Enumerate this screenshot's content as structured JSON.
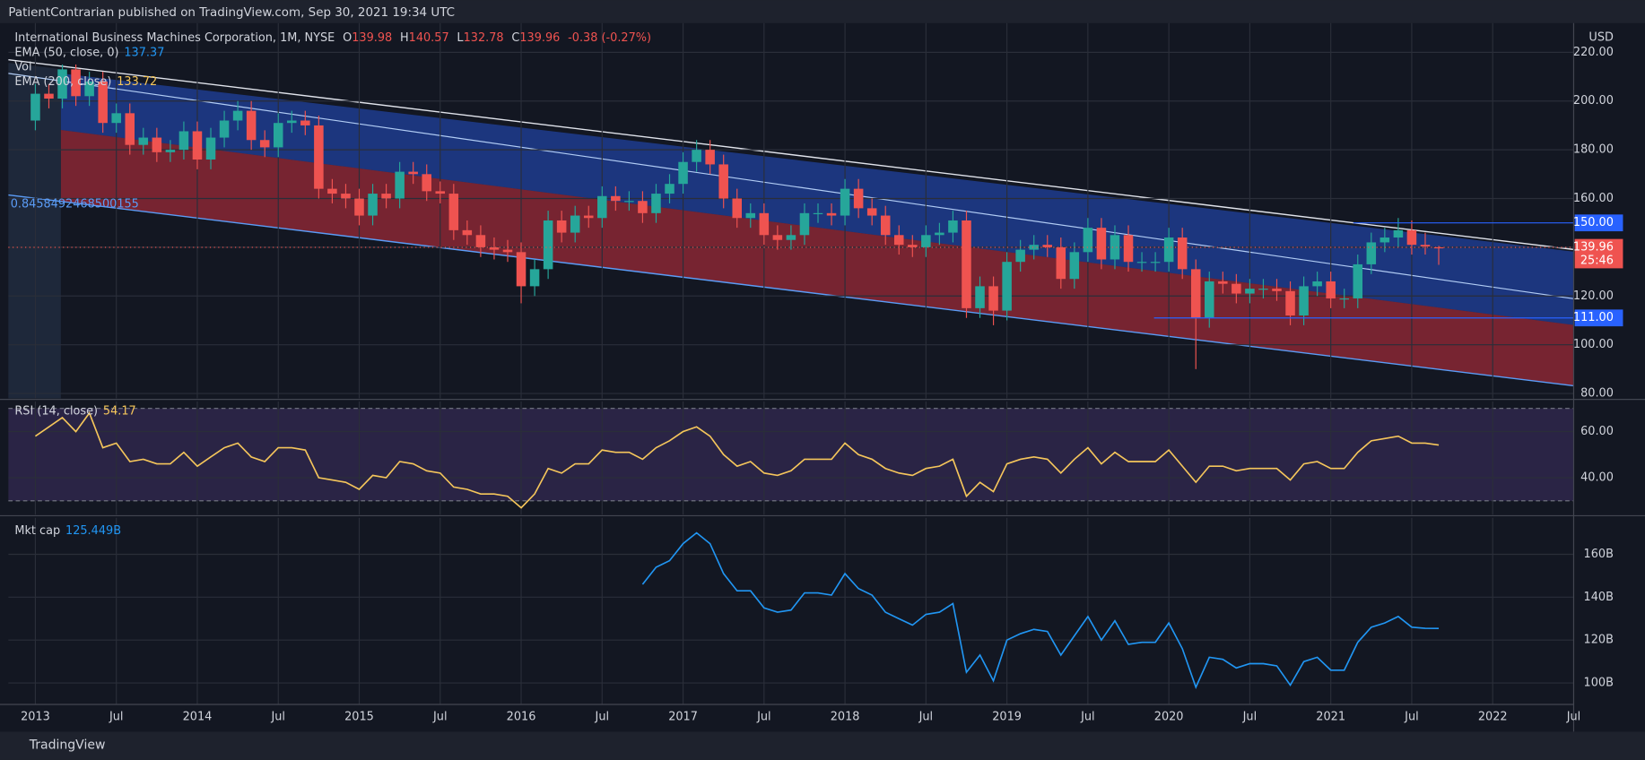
{
  "header": {
    "published": "PatientContrarian published on TradingView.com, Sep 30, 2021 19:34 UTC"
  },
  "footer": {
    "logo": "TradingView"
  },
  "chart_data": {
    "type": "candlestick",
    "title": "International Business Machines Corporation, 1M, NYSE",
    "currency": "USD",
    "change": "-0.38 (-0.27%)",
    "countdown": "25:46",
    "side_label": "0.8458492468500155",
    "legend": [
      {
        "name": "EMA (50, close, 0)",
        "value": 137.37
      },
      {
        "name": "Vol"
      },
      {
        "name": "EMA (200, close)",
        "value": 133.72
      }
    ],
    "up_color": "#26a69a",
    "down_color": "#ef5350",
    "x": [
      "2013-01",
      "2013-02",
      "2013-03",
      "2013-04",
      "2013-05",
      "2013-06",
      "2013-07",
      "2013-08",
      "2013-09",
      "2013-10",
      "2013-11",
      "2013-12",
      "2014-01",
      "2014-02",
      "2014-03",
      "2014-04",
      "2014-05",
      "2014-06",
      "2014-07",
      "2014-08",
      "2014-09",
      "2014-10",
      "2014-11",
      "2014-12",
      "2015-01",
      "2015-02",
      "2015-03",
      "2015-04",
      "2015-05",
      "2015-06",
      "2015-07",
      "2015-08",
      "2015-09",
      "2015-10",
      "2015-11",
      "2015-12",
      "2016-01",
      "2016-02",
      "2016-03",
      "2016-04",
      "2016-05",
      "2016-06",
      "2016-07",
      "2016-08",
      "2016-09",
      "2016-10",
      "2016-11",
      "2016-12",
      "2017-01",
      "2017-02",
      "2017-03",
      "2017-04",
      "2017-05",
      "2017-06",
      "2017-07",
      "2017-08",
      "2017-09",
      "2017-10",
      "2017-11",
      "2017-12",
      "2018-01",
      "2018-02",
      "2018-03",
      "2018-04",
      "2018-05",
      "2018-06",
      "2018-07",
      "2018-08",
      "2018-09",
      "2018-10",
      "2018-11",
      "2018-12",
      "2019-01",
      "2019-02",
      "2019-03",
      "2019-04",
      "2019-05",
      "2019-06",
      "2019-07",
      "2019-08",
      "2019-09",
      "2019-10",
      "2019-11",
      "2019-12",
      "2020-01",
      "2020-02",
      "2020-03",
      "2020-04",
      "2020-05",
      "2020-06",
      "2020-07",
      "2020-08",
      "2020-09",
      "2020-10",
      "2020-11",
      "2020-12",
      "2021-01",
      "2021-02",
      "2021-03",
      "2021-04",
      "2021-05",
      "2021-06",
      "2021-07",
      "2021-08",
      "2021-09"
    ],
    "open": [
      192,
      203,
      201,
      213,
      202,
      208,
      191,
      195,
      182,
      185,
      179,
      180,
      187.6,
      176,
      185,
      192,
      196,
      184,
      181,
      191,
      192,
      190,
      164,
      162,
      160,
      153,
      162,
      160,
      171,
      170,
      163,
      162,
      147,
      145,
      140,
      139,
      138,
      124,
      131,
      151,
      146,
      153,
      152,
      161,
      159,
      159,
      154,
      162,
      166,
      175,
      180,
      174,
      160,
      152,
      154,
      145,
      143,
      145,
      154,
      154,
      153,
      164,
      156,
      153,
      145,
      141,
      140,
      145,
      146,
      151,
      115,
      124,
      114,
      134,
      139,
      141,
      140,
      127,
      138,
      148,
      135,
      145,
      134,
      134,
      134,
      144,
      131,
      111,
      126,
      125,
      121,
      123,
      123,
      122,
      112,
      124,
      126,
      119,
      119,
      133,
      142,
      144,
      147,
      141,
      139.98
    ],
    "high": [
      207,
      207,
      215,
      215,
      212,
      212,
      199,
      199,
      189,
      189,
      184,
      191.6,
      191.6,
      189,
      196,
      200,
      200,
      188,
      195,
      196,
      196,
      194,
      168,
      166,
      164,
      166,
      166,
      175,
      175,
      174,
      167,
      166,
      151,
      149,
      144,
      143,
      142,
      135,
      155,
      155,
      157,
      157,
      165,
      165,
      163,
      163,
      166,
      170,
      179,
      184,
      184,
      178,
      164,
      158,
      158,
      149,
      149,
      158,
      158,
      158,
      168,
      168,
      160,
      157,
      149,
      145,
      149,
      150,
      155,
      155,
      128,
      128,
      138,
      143,
      145,
      145,
      144,
      142,
      152,
      152,
      149,
      149,
      138,
      138,
      148,
      148,
      135,
      130,
      130,
      129,
      127,
      127,
      127,
      126,
      128,
      130,
      130,
      123,
      137,
      146,
      148,
      152,
      151,
      146,
      140.57
    ],
    "low": [
      188,
      197,
      197,
      198,
      198,
      187,
      187,
      178,
      178,
      175,
      175,
      176,
      172,
      172,
      181,
      188,
      180,
      177,
      177,
      187,
      186,
      160,
      158,
      156,
      149,
      149,
      156,
      156,
      166,
      159,
      158,
      143,
      141,
      136,
      135,
      134,
      117,
      120,
      127,
      142,
      142,
      148,
      148,
      155,
      155,
      150,
      150,
      158,
      162,
      171,
      170,
      156,
      148,
      148,
      141,
      139,
      139,
      141,
      150,
      149,
      149,
      152,
      149,
      141,
      137,
      136,
      136,
      141,
      142,
      111,
      111,
      108,
      110,
      130,
      135,
      136,
      123,
      123,
      134,
      131,
      131,
      130,
      130,
      130,
      130,
      127,
      90,
      107,
      121,
      117,
      117,
      119,
      118,
      108,
      108,
      120,
      115,
      115,
      115,
      129,
      138,
      140,
      137,
      137,
      132.78
    ],
    "close": [
      203,
      201,
      213,
      202,
      208,
      191,
      195,
      182,
      185,
      179,
      180,
      187.6,
      176,
      185,
      192,
      196,
      184,
      181,
      191,
      192,
      190,
      164,
      162,
      160,
      153,
      162,
      160,
      171,
      170,
      163,
      162,
      147,
      145,
      140,
      139,
      138,
      124,
      131,
      151,
      146,
      153,
      152,
      161,
      159,
      159,
      154,
      162,
      166,
      175,
      180,
      174,
      160,
      152,
      154,
      145,
      143,
      145,
      154,
      154,
      153,
      164,
      156,
      153,
      145,
      141,
      140,
      145,
      146,
      151,
      115,
      124,
      114,
      134,
      139,
      141,
      140,
      127,
      138,
      148,
      135,
      145,
      134,
      134,
      134,
      144,
      131,
      111,
      126,
      125,
      121,
      123,
      123,
      122,
      112,
      124,
      126,
      119,
      119,
      133,
      142,
      144,
      147,
      141,
      140.34,
      139.96
    ],
    "xlim": [
      "2012-11",
      "2022-07"
    ],
    "xticks": [
      {
        "value": "2013-01",
        "label": "2013"
      },
      {
        "value": "2013-07",
        "label": "Jul"
      },
      {
        "value": "2014-01",
        "label": "2014"
      },
      {
        "value": "2014-07",
        "label": "Jul"
      },
      {
        "value": "2015-01",
        "label": "2015"
      },
      {
        "value": "2015-07",
        "label": "Jul"
      },
      {
        "value": "2016-01",
        "label": "2016"
      },
      {
        "value": "2016-07",
        "label": "Jul"
      },
      {
        "value": "2017-01",
        "label": "2017"
      },
      {
        "value": "2017-07",
        "label": "Jul"
      },
      {
        "value": "2018-01",
        "label": "2018"
      },
      {
        "value": "2018-07",
        "label": "Jul"
      },
      {
        "value": "2019-01",
        "label": "2019"
      },
      {
        "value": "2019-07",
        "label": "Jul"
      },
      {
        "value": "2020-01",
        "label": "2020"
      },
      {
        "value": "2020-07",
        "label": "Jul"
      },
      {
        "value": "2021-01",
        "label": "2021"
      },
      {
        "value": "2021-07",
        "label": "Jul"
      },
      {
        "value": "2022-01",
        "label": "2022"
      },
      {
        "value": "2022-07",
        "label": "Jul"
      }
    ],
    "ylim": [
      78,
      232
    ],
    "yticks": [
      {
        "value": 80,
        "label": "80.00"
      },
      {
        "value": 100,
        "label": "100.00"
      },
      {
        "value": 120,
        "label": "120.00"
      },
      {
        "value": 140,
        "label": "140.00"
      },
      {
        "value": 160,
        "label": "160.00"
      },
      {
        "value": 180,
        "label": "180.00"
      },
      {
        "value": 200,
        "label": "200.00"
      },
      {
        "value": 220,
        "label": "220.00"
      }
    ],
    "levels": [
      {
        "value": 150,
        "label": "150.00"
      },
      {
        "value": 111,
        "label": "111.00"
      }
    ],
    "level_color": "#2962ff",
    "grid": true,
    "indicators": [
      {
        "name": "RSI (14, close)",
        "color": "#f5c65b",
        "band": [
          30,
          70
        ],
        "ylim": [
          24,
          73
        ],
        "yticks": [
          {
            "value": 60,
            "label": "60.00"
          },
          {
            "value": 40,
            "label": "40.00"
          }
        ],
        "values": [
          58,
          62,
          66,
          60,
          68,
          53,
          55,
          47,
          48,
          46,
          46,
          51,
          45,
          49,
          53,
          55,
          49,
          47,
          53,
          53,
          52,
          40,
          39,
          38,
          35,
          41,
          40,
          47,
          46,
          43,
          42,
          36,
          35,
          33,
          33,
          32,
          27,
          33,
          44,
          42,
          46,
          46,
          52,
          51,
          51,
          48,
          53,
          56,
          60,
          62,
          58,
          50,
          45,
          47,
          42,
          41,
          43,
          48,
          48,
          48,
          55,
          50,
          48,
          44,
          42,
          41,
          44,
          45,
          48,
          32,
          38,
          34,
          46,
          48,
          49,
          48,
          42,
          48,
          53,
          46,
          51,
          47,
          47,
          47,
          52,
          45,
          38,
          45,
          45,
          43,
          44,
          44,
          44,
          39,
          46,
          47,
          44,
          44,
          51,
          56,
          57,
          58,
          55,
          55,
          54.17
        ]
      },
      {
        "name": "Mkt cap",
        "color": "#2196f3",
        "ylim": [
          90,
          177
        ],
        "yticks": [
          {
            "value": 100,
            "label": "100B"
          },
          {
            "value": 120,
            "label": "120B"
          },
          {
            "value": 140,
            "label": "140B"
          },
          {
            "value": 160,
            "label": "160B"
          }
        ],
        "values": [
          null,
          null,
          null,
          null,
          null,
          null,
          null,
          null,
          null,
          null,
          null,
          null,
          null,
          null,
          null,
          null,
          null,
          null,
          null,
          null,
          null,
          null,
          null,
          null,
          null,
          null,
          null,
          null,
          null,
          null,
          null,
          null,
          null,
          null,
          null,
          null,
          null,
          null,
          null,
          null,
          null,
          null,
          null,
          null,
          null,
          146,
          154,
          157,
          165,
          170,
          165,
          151,
          143,
          143,
          135,
          133,
          134,
          142,
          142,
          141,
          151,
          144,
          141,
          133,
          130,
          127,
          132,
          133,
          137,
          105,
          113,
          101,
          120,
          123,
          125,
          124,
          113,
          122,
          131,
          120,
          129,
          118,
          119,
          119,
          128,
          116,
          98,
          112,
          111,
          107,
          109,
          109,
          108,
          99,
          110,
          112,
          106,
          106,
          119,
          126,
          128,
          131,
          126,
          125.5,
          125.449
        ],
        "value_labels": [
          null,
          null,
          null,
          null,
          null,
          null,
          null,
          null,
          null,
          null,
          null,
          null,
          null,
          null,
          null,
          null,
          null,
          null,
          null,
          null,
          null,
          null,
          null,
          null,
          null,
          null,
          null,
          null,
          null,
          null,
          null,
          null,
          null,
          null,
          null,
          null,
          null,
          null,
          null,
          null,
          null,
          null,
          null,
          null,
          null,
          null,
          null,
          null,
          null,
          null,
          null,
          null,
          null,
          null,
          null,
          null,
          null,
          null,
          null,
          null,
          null,
          null,
          null,
          null,
          null,
          null,
          null,
          null,
          null,
          null,
          null,
          null,
          null,
          null,
          null,
          null,
          null,
          null,
          null,
          null,
          null,
          null,
          null,
          null,
          null,
          null,
          null,
          null,
          null,
          null,
          null,
          null,
          null,
          null,
          null,
          null,
          null,
          null,
          null,
          null,
          null,
          null,
          null,
          null,
          "125.449B"
        ]
      }
    ]
  }
}
